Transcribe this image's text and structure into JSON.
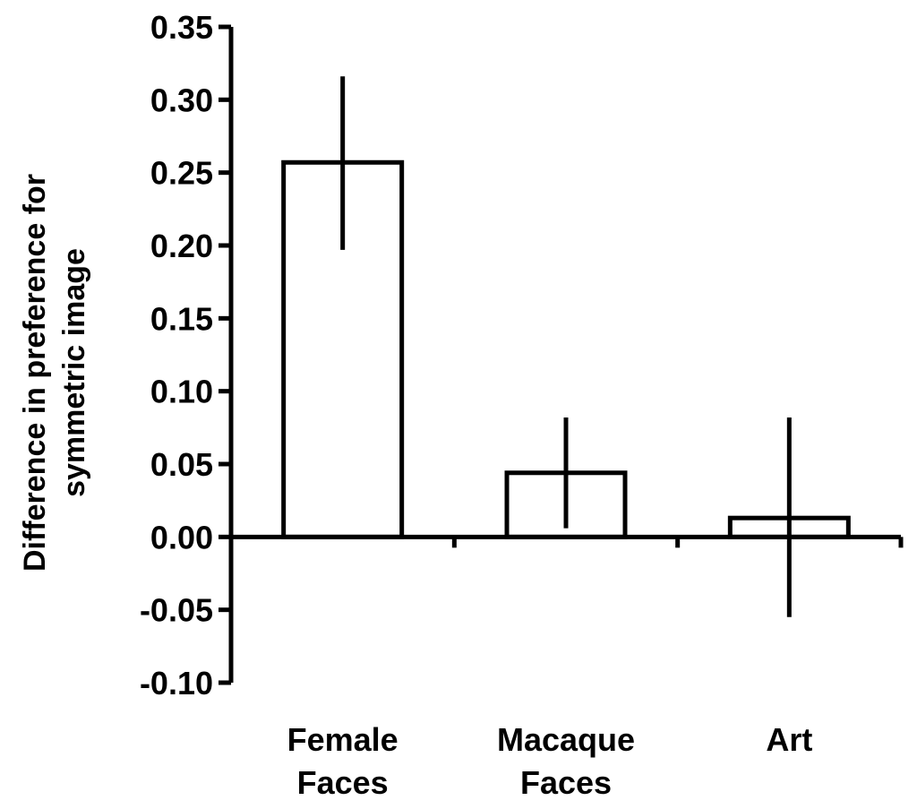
{
  "chart_data": {
    "type": "bar",
    "title": "",
    "xlabel": "",
    "ylabel_lines": [
      "Difference in preference for",
      "symmetric image"
    ],
    "categories": [
      {
        "lines": [
          "Female",
          "Faces"
        ]
      },
      {
        "lines": [
          "Macaque",
          "Faces"
        ]
      },
      {
        "lines": [
          "Art"
        ]
      }
    ],
    "values": [
      0.257,
      0.044,
      0.013
    ],
    "error_bars": [
      {
        "low": 0.197,
        "high": 0.316
      },
      {
        "low": 0.006,
        "high": 0.082
      },
      {
        "low": -0.055,
        "high": 0.082
      }
    ],
    "ylim": [
      -0.1,
      0.35
    ],
    "yticks": [
      "0.35",
      "0.30",
      "0.25",
      "0.20",
      "0.15",
      "0.10",
      "0.05",
      "0.00",
      "-0.05",
      "-0.10"
    ],
    "ytick_values": [
      0.35,
      0.3,
      0.25,
      0.2,
      0.15,
      0.1,
      0.05,
      0.0,
      -0.05,
      -0.1
    ],
    "bar_fill": "#ffffff",
    "bar_stroke": "#000000",
    "grid": false,
    "legend": "none"
  }
}
